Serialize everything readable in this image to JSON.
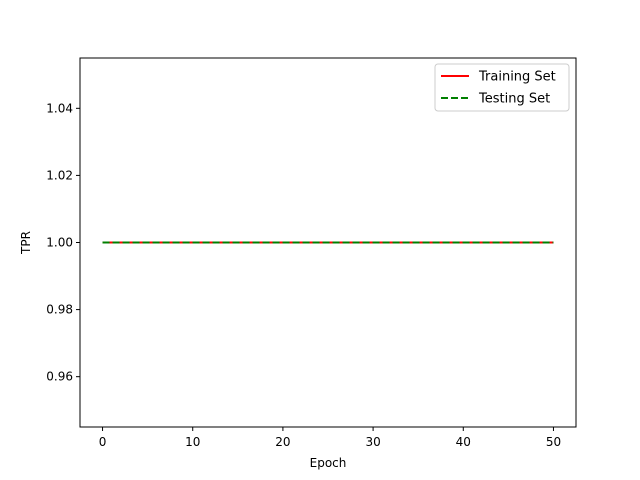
{
  "chart_data": {
    "type": "line",
    "xlabel": "Epoch",
    "ylabel": "TPR",
    "xlim": [
      -2.5,
      52.5
    ],
    "ylim": [
      0.945,
      1.055
    ],
    "xticks": [
      0,
      10,
      20,
      30,
      40,
      50
    ],
    "yticks": [
      0.96,
      0.98,
      1.0,
      1.02,
      1.04
    ],
    "xtick_labels": [
      "0",
      "10",
      "20",
      "30",
      "40",
      "50"
    ],
    "ytick_labels": [
      "0.96",
      "0.98",
      "1.00",
      "1.02",
      "1.04"
    ],
    "grid": false,
    "legend_position": "top-right",
    "series": [
      {
        "name": "Training Set",
        "color": "#ff0000",
        "style": "solid",
        "x": [
          0,
          50
        ],
        "y": [
          1.0,
          1.0
        ]
      },
      {
        "name": "Testing Set",
        "color": "#008000",
        "style": "dashed",
        "x": [
          0,
          50
        ],
        "y": [
          1.0,
          1.0
        ]
      }
    ]
  }
}
